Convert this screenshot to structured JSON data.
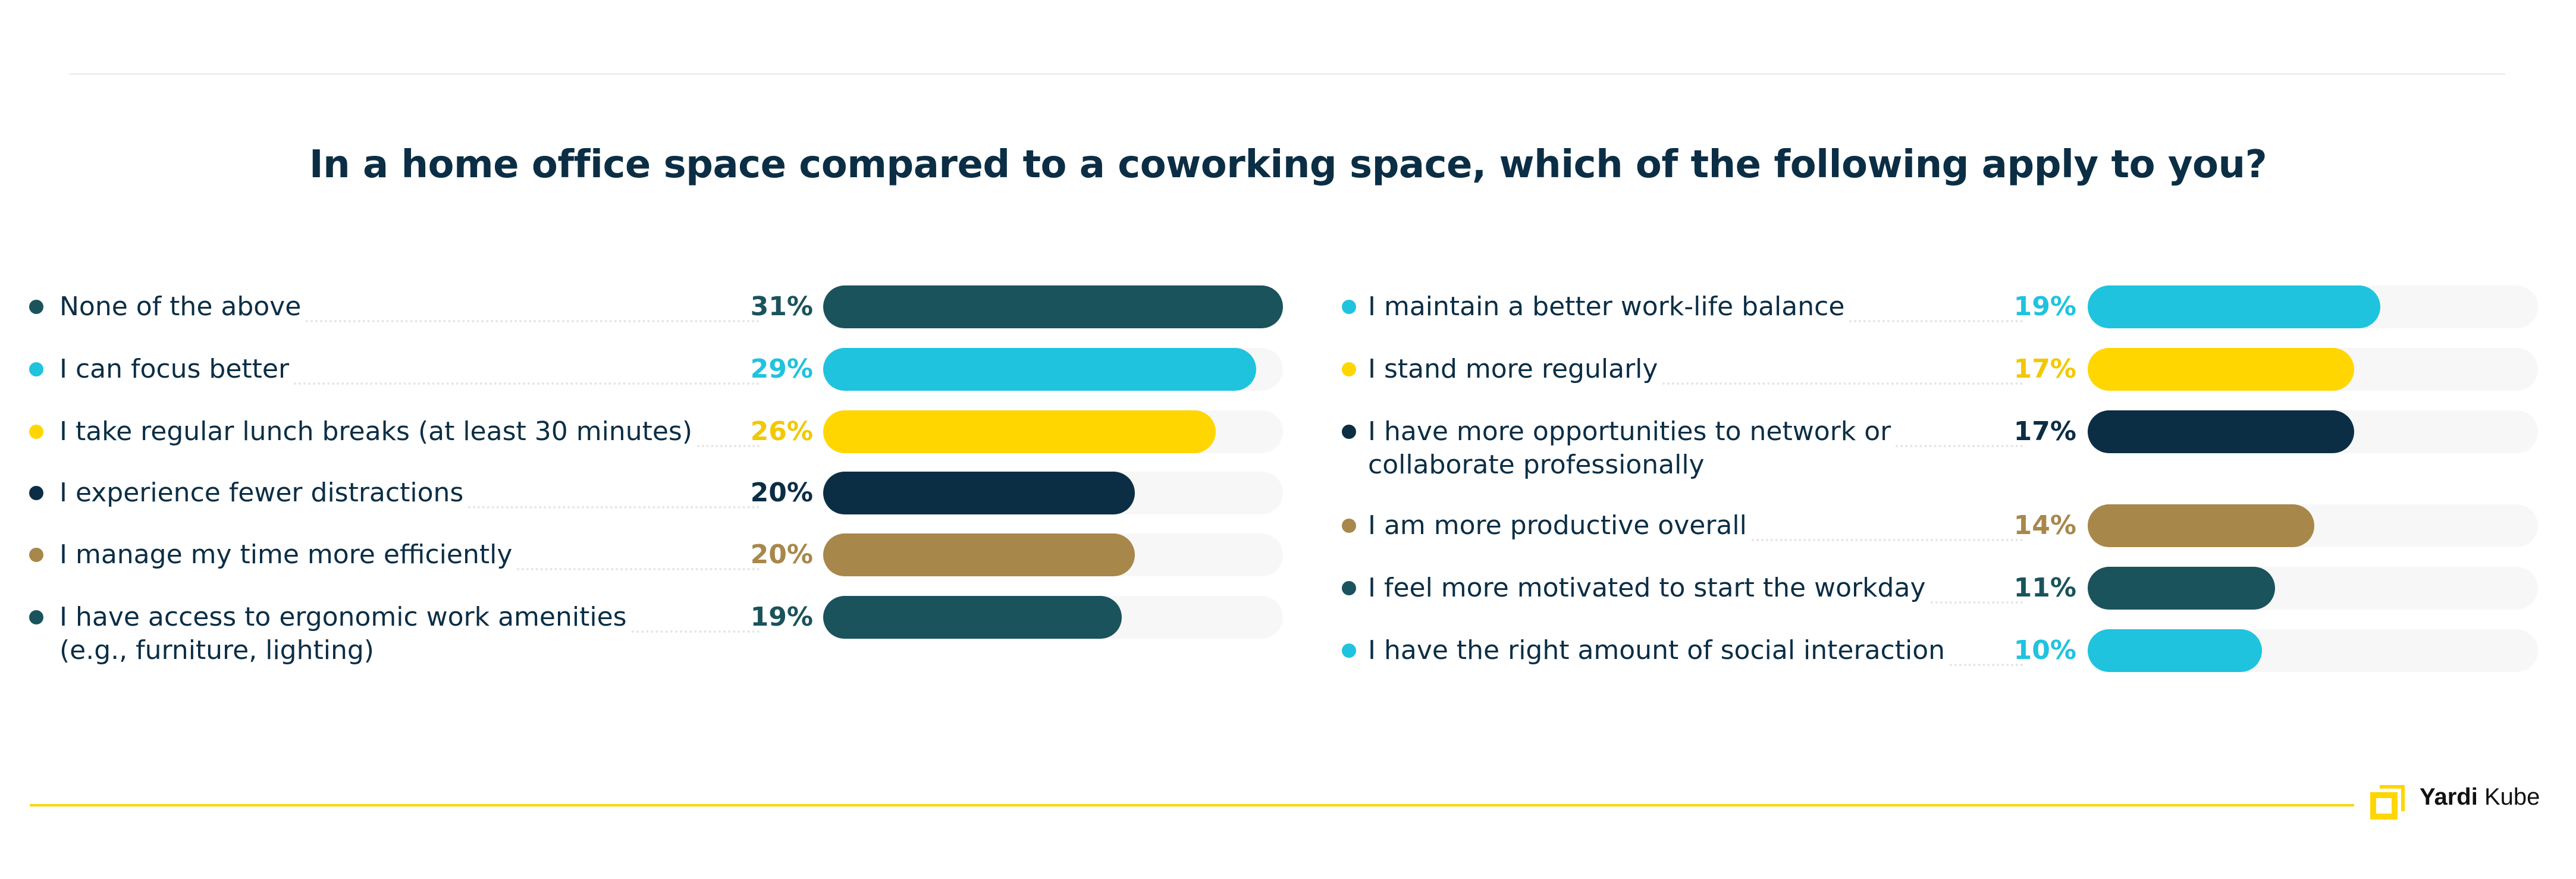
{
  "title": "In a home office space compared to a coworking space, which of the following apply to you?",
  "brand": {
    "name": "Yardi",
    "product": "Kube",
    "logo_color": "#ffd600"
  },
  "colors": {
    "dark_teal": "#1a535c",
    "cyan": "#1fc3de",
    "yellow": "#ffd600",
    "navy": "#0b2e45",
    "gold": "#a8874b",
    "text": "#0b2e45",
    "track": "#f7f7f7"
  },
  "chart_data": {
    "type": "bar",
    "orientation": "horizontal",
    "title": "In a home office space compared to a coworking space, which of the following apply to you?",
    "unit": "%",
    "xlim": [
      0,
      31
    ],
    "grid": false,
    "columns": [
      [
        {
          "label": "None of the above",
          "value": 31,
          "color": "#1a535c"
        },
        {
          "label": "I can focus better",
          "value": 29,
          "color": "#1fc3de"
        },
        {
          "label": "I take regular lunch breaks (at least 30 minutes)",
          "value": 26,
          "color": "#ffd600"
        },
        {
          "label": "I experience fewer distractions",
          "value": 20,
          "color": "#0b2e45"
        },
        {
          "label": "I manage my time more efficiently",
          "value": 20,
          "color": "#a8874b"
        },
        {
          "label": "I have access to ergonomic work amenities",
          "label2": "(e.g., furniture, lighting)",
          "value": 19,
          "color": "#1a535c"
        }
      ],
      [
        {
          "label": "I maintain a better work-life balance",
          "value": 19,
          "color": "#1fc3de"
        },
        {
          "label": "I stand more regularly",
          "value": 17,
          "color": "#ffd600"
        },
        {
          "label": "I have more opportunities to network or",
          "label2": "collaborate professionally",
          "value": 17,
          "color": "#0b2e45"
        },
        {
          "label": "I am more productive overall",
          "value": 14,
          "color": "#a8874b"
        },
        {
          "label": "I feel more motivated to start the workday",
          "value": 11,
          "color": "#1a535c"
        },
        {
          "label": "I have the right amount of social interaction",
          "value": 10,
          "color": "#1fc3de"
        }
      ]
    ]
  }
}
